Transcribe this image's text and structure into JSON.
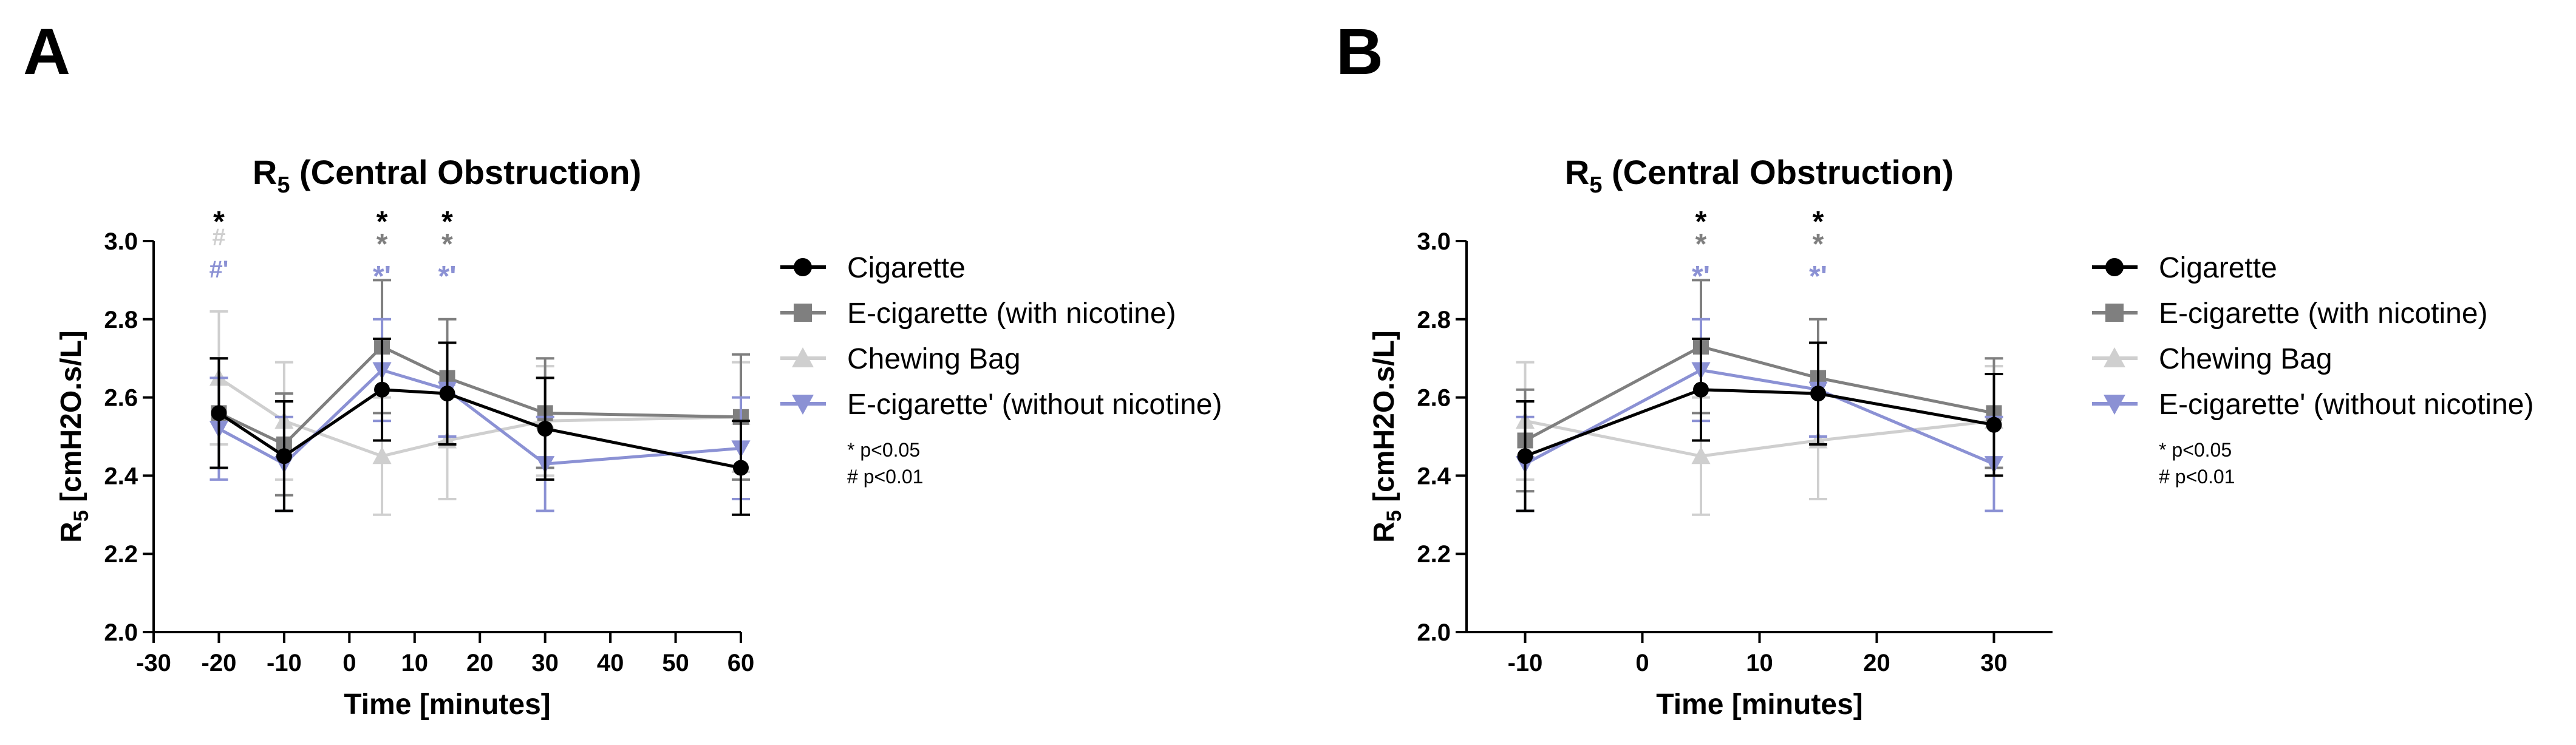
{
  "chart_data": [
    {
      "panel_label": "A",
      "type": "line",
      "title": "R5 (Central Obstruction)",
      "title_main": "R",
      "title_sub": "5",
      "title_rest": " (Central Obstruction)",
      "xlabel": "Time [minutes]",
      "ylabel_main": "R",
      "ylabel_sub": "5",
      "ylabel_rest": " [cmH2O.s/L]",
      "xlim": [
        -30,
        60
      ],
      "ylim": [
        2.0,
        3.0
      ],
      "x_ticks": [
        -30,
        -20,
        -10,
        0,
        10,
        20,
        30,
        40,
        50,
        60
      ],
      "y_ticks": [
        2.0,
        2.2,
        2.4,
        2.6,
        2.8,
        3.0
      ],
      "y_tick_labels": [
        "2.0",
        "2.2",
        "2.4",
        "2.6",
        "2.8",
        "3.0"
      ],
      "x": [
        -20,
        -10,
        5,
        15,
        30,
        60
      ],
      "series": [
        {
          "name": "Cigarette",
          "color": "#000000",
          "marker": "circle",
          "values": [
            2.56,
            2.45,
            2.62,
            2.61,
            2.52,
            2.42
          ],
          "errors": [
            0.14,
            0.14,
            0.13,
            0.13,
            0.13,
            0.12
          ]
        },
        {
          "name": "E-cigarette (with nicotine)",
          "color": "#7f7f7f",
          "marker": "square",
          "values": [
            2.56,
            2.48,
            2.73,
            2.65,
            2.56,
            2.55
          ],
          "errors": [
            0.14,
            0.13,
            0.17,
            0.15,
            0.14,
            0.16
          ]
        },
        {
          "name": "Chewing Bag",
          "color": "#cfcfcf",
          "marker": "triangle-up",
          "values": [
            2.65,
            2.54,
            2.45,
            2.49,
            2.54,
            2.55
          ],
          "errors": [
            0.17,
            0.15,
            0.15,
            0.15,
            0.14,
            0.14
          ]
        },
        {
          "name": "E-cigarette' (without nicotine)",
          "color": "#8b91d4",
          "marker": "triangle-down",
          "values": [
            2.52,
            2.43,
            2.67,
            2.62,
            2.43,
            2.47
          ],
          "errors": [
            0.13,
            0.12,
            0.13,
            0.12,
            0.12,
            0.13
          ]
        }
      ],
      "annotations": [
        {
          "x": -20,
          "row": 0,
          "text": "*",
          "color": "#000000"
        },
        {
          "x": -20,
          "row": 1,
          "text": "#",
          "color": "#cfcfcf"
        },
        {
          "x": -20,
          "row": 2,
          "text": "#'",
          "color": "#8b91d4"
        },
        {
          "x": 5,
          "row": 0,
          "text": "*",
          "color": "#000000"
        },
        {
          "x": 5,
          "row": 1,
          "text": "*",
          "color": "#7f7f7f"
        },
        {
          "x": 5,
          "row": 2,
          "text": "*'",
          "color": "#8b91d4"
        },
        {
          "x": 15,
          "row": 0,
          "text": "*",
          "color": "#000000"
        },
        {
          "x": 15,
          "row": 1,
          "text": "*",
          "color": "#7f7f7f"
        },
        {
          "x": 15,
          "row": 2,
          "text": "*'",
          "color": "#8b91d4"
        }
      ],
      "sig_notes": [
        "* p<0.05",
        "# p<0.01"
      ]
    },
    {
      "panel_label": "B",
      "type": "line",
      "title": "R5 (Central Obstruction)",
      "title_main": "R",
      "title_sub": "5",
      "title_rest": " (Central Obstruction)",
      "xlabel": "Time [minutes]",
      "ylabel_main": "R",
      "ylabel_sub": "5",
      "ylabel_rest": " [cmH2O.s/L]",
      "xlim": [
        -15,
        35
      ],
      "ylim": [
        2.0,
        3.0
      ],
      "x_ticks": [
        -10,
        0,
        10,
        20,
        30
      ],
      "y_ticks": [
        2.0,
        2.2,
        2.4,
        2.6,
        2.8,
        3.0
      ],
      "y_tick_labels": [
        "2.0",
        "2.2",
        "2.4",
        "2.6",
        "2.8",
        "3.0"
      ],
      "x": [
        -10,
        5,
        15,
        30
      ],
      "series": [
        {
          "name": "Cigarette",
          "color": "#000000",
          "marker": "circle",
          "values": [
            2.45,
            2.62,
            2.61,
            2.53
          ],
          "errors": [
            0.14,
            0.13,
            0.13,
            0.13
          ]
        },
        {
          "name": "E-cigarette (with nicotine)",
          "color": "#7f7f7f",
          "marker": "square",
          "values": [
            2.49,
            2.73,
            2.65,
            2.56
          ],
          "errors": [
            0.13,
            0.17,
            0.15,
            0.14
          ]
        },
        {
          "name": "Chewing Bag",
          "color": "#cfcfcf",
          "marker": "triangle-up",
          "values": [
            2.54,
            2.45,
            2.49,
            2.54
          ],
          "errors": [
            0.15,
            0.15,
            0.15,
            0.14
          ]
        },
        {
          "name": "E-cigarette' (without nicotine)",
          "color": "#8b91d4",
          "marker": "triangle-down",
          "values": [
            2.43,
            2.67,
            2.62,
            2.43
          ],
          "errors": [
            0.12,
            0.13,
            0.12,
            0.12
          ]
        }
      ],
      "annotations": [
        {
          "x": 5,
          "row": 0,
          "text": "*",
          "color": "#000000"
        },
        {
          "x": 5,
          "row": 1,
          "text": "*",
          "color": "#7f7f7f"
        },
        {
          "x": 5,
          "row": 2,
          "text": "*'",
          "color": "#8b91d4"
        },
        {
          "x": 15,
          "row": 0,
          "text": "*",
          "color": "#000000"
        },
        {
          "x": 15,
          "row": 1,
          "text": "*",
          "color": "#7f7f7f"
        },
        {
          "x": 15,
          "row": 2,
          "text": "*'",
          "color": "#8b91d4"
        }
      ],
      "sig_notes": [
        "* p<0.05",
        "# p<0.01"
      ]
    }
  ]
}
